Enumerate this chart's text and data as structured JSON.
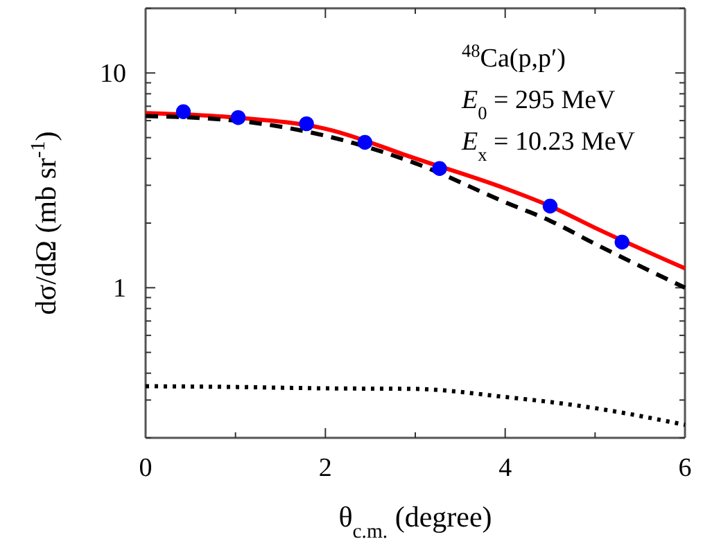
{
  "chart_data": {
    "type": "line",
    "xlabel": "θ$_{c.m.}$ (degree)",
    "ylabel": "dσ/dΩ (mb sr$^{-1}$)",
    "log": "y",
    "xlim": [
      0,
      6
    ],
    "ylim": [
      0.2,
      20
    ],
    "xticks": [
      0,
      {
        "value": 1,
        "label": null
      },
      2,
      {
        "value": 3,
        "label": null
      },
      4,
      {
        "value": 5,
        "label": null
      },
      6
    ],
    "yticks": [
      {
        "value": 0.2,
        "label": null
      },
      {
        "value": 0.3,
        "label": null
      },
      {
        "value": 0.4,
        "label": null
      },
      {
        "value": 0.5,
        "label": null
      },
      {
        "value": 0.6,
        "label": null
      },
      {
        "value": 0.7,
        "label": null
      },
      {
        "value": 0.8,
        "label": null
      },
      {
        "value": 0.9,
        "label": null
      },
      1,
      {
        "value": 2,
        "label": null
      },
      {
        "value": 3,
        "label": null
      },
      {
        "value": 4,
        "label": null
      },
      {
        "value": 5,
        "label": null
      },
      {
        "value": 6,
        "label": null
      },
      {
        "value": 7,
        "label": null
      },
      {
        "value": 8,
        "label": null
      },
      {
        "value": 9,
        "label": null
      },
      10,
      {
        "value": 20,
        "label": null
      }
    ],
    "annotations": [
      "$^{48}$Ca(p,p′)",
      "E$_{0}$ = 295 MeV",
      "E$_{x}$ = 10.23 MeV"
    ],
    "series": [
      {
        "color": "#ff0000",
        "line_style": "solid",
        "x": [
          0,
          1,
          2,
          3,
          4,
          4.5,
          5,
          6
        ],
        "values": [
          6.5,
          6.2,
          5.5,
          4.0,
          2.9,
          2.4,
          1.9,
          1.23
        ]
      },
      {
        "color": "#000000",
        "line_style": "dashed",
        "x": [
          0,
          1,
          2,
          3,
          4,
          4.5,
          5,
          6
        ],
        "values": [
          6.3,
          6.0,
          5.1,
          3.8,
          2.5,
          2.05,
          1.6,
          1.0
        ]
      },
      {
        "color": "#000000",
        "line_style": "dotted",
        "x": [
          0,
          1,
          2,
          3,
          4,
          5,
          6
        ],
        "values": [
          0.348,
          0.345,
          0.34,
          0.338,
          0.31,
          0.275,
          0.23
        ]
      },
      {
        "type": "scatter",
        "color": "#0000ff",
        "marker": "circle",
        "x": [
          0.42,
          1.03,
          1.79,
          2.44,
          3.27,
          4.5,
          5.3
        ],
        "values": [
          6.6,
          6.2,
          5.8,
          4.75,
          3.59,
          2.4,
          1.63
        ]
      }
    ]
  }
}
